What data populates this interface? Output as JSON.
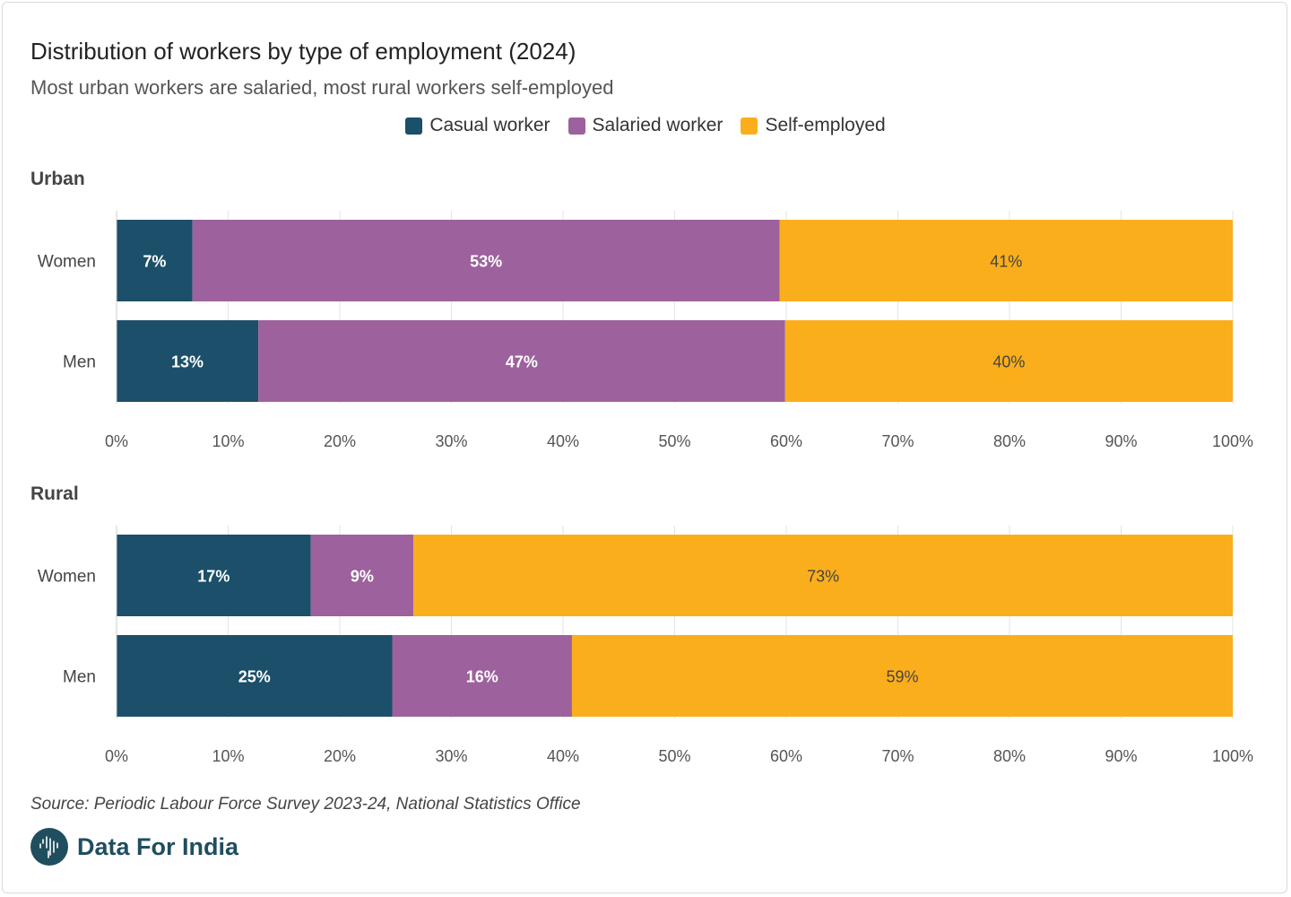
{
  "title": "Distribution of workers by type of employment (2024)",
  "subtitle": "Most urban workers are salaried, most rural workers self-employed",
  "legend": [
    {
      "label": "Casual worker",
      "color": "#1b4f6a"
    },
    {
      "label": "Salaried worker",
      "color": "#9d619d"
    },
    {
      "label": "Self-employed",
      "color": "#fbae1b"
    }
  ],
  "chart_data": [
    {
      "type": "bar",
      "orientation": "horizontal",
      "stacked": true,
      "title": "Urban",
      "categories": [
        "Women",
        "Men"
      ],
      "series": [
        {
          "name": "Casual worker",
          "values": [
            6.8,
            12.7
          ],
          "labels": [
            "7%",
            "13%"
          ]
        },
        {
          "name": "Salaried worker",
          "values": [
            52.6,
            47.2
          ],
          "labels": [
            "53%",
            "47%"
          ]
        },
        {
          "name": "Self-employed",
          "values": [
            40.6,
            40.1
          ],
          "labels": [
            "41%",
            "40%"
          ]
        }
      ],
      "xlim": [
        0,
        100
      ],
      "xticks": [
        "0%",
        "10%",
        "20%",
        "30%",
        "40%",
        "50%",
        "60%",
        "70%",
        "80%",
        "90%",
        "100%"
      ],
      "grid": true
    },
    {
      "type": "bar",
      "orientation": "horizontal",
      "stacked": true,
      "title": "Rural",
      "categories": [
        "Women",
        "Men"
      ],
      "series": [
        {
          "name": "Casual worker",
          "values": [
            17.4,
            24.7
          ],
          "labels": [
            "17%",
            "25%"
          ]
        },
        {
          "name": "Salaried worker",
          "values": [
            9.2,
            16.1
          ],
          "labels": [
            "9%",
            "16%"
          ]
        },
        {
          "name": "Self-employed",
          "values": [
            73.4,
            59.2
          ],
          "labels": [
            "73%",
            "59%"
          ]
        }
      ],
      "xlim": [
        0,
        100
      ],
      "xticks": [
        "0%",
        "10%",
        "20%",
        "30%",
        "40%",
        "50%",
        "60%",
        "70%",
        "80%",
        "90%",
        "100%"
      ],
      "grid": true
    }
  ],
  "source": "Source: Periodic Labour Force Survey 2023-24, National Statistics Office",
  "brand": {
    "name": "Data For India"
  }
}
